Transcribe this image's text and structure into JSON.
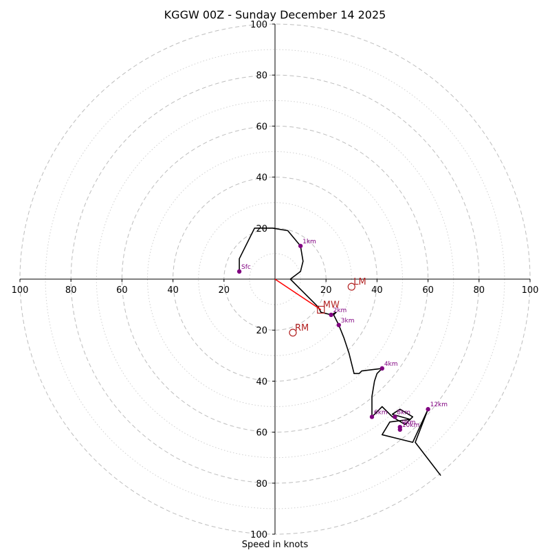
{
  "chart_data": {
    "type": "scatter",
    "title": "KGGW 00Z - Sunday December 14 2025",
    "xlabel": "Speed in knots",
    "ylabel": "",
    "xlim": [
      -100,
      100
    ],
    "ylim": [
      -100,
      100
    ],
    "ring_major": [
      20,
      40,
      60,
      80,
      100
    ],
    "ring_minor": [
      10,
      30,
      50,
      70,
      90
    ],
    "tick_labels": [
      "20",
      "40",
      "60",
      "80",
      "100"
    ],
    "hodograph_trace": [
      [
        -14,
        3
      ],
      [
        -14,
        8
      ],
      [
        -9,
        18
      ],
      [
        -8,
        20
      ],
      [
        -1,
        20
      ],
      [
        5,
        19
      ],
      [
        10,
        13
      ],
      [
        11,
        7
      ],
      [
        10,
        3
      ],
      [
        6,
        0
      ],
      [
        10,
        -4
      ],
      [
        17,
        -11
      ],
      [
        18,
        -13
      ],
      [
        22,
        -14
      ],
      [
        24,
        -13
      ],
      [
        23,
        -14
      ],
      [
        25,
        -18
      ],
      [
        27,
        -23
      ],
      [
        29,
        -29
      ],
      [
        31,
        -37
      ],
      [
        33,
        -37
      ],
      [
        34,
        -36
      ],
      [
        42,
        -35
      ],
      [
        40,
        -37
      ],
      [
        39,
        -40
      ],
      [
        38,
        -46
      ],
      [
        38,
        -54
      ],
      [
        41,
        -51
      ],
      [
        42,
        -50
      ],
      [
        46,
        -54
      ],
      [
        51,
        -57
      ],
      [
        54,
        -54
      ],
      [
        49,
        -51
      ],
      [
        46,
        -53
      ],
      [
        53,
        -55
      ],
      [
        45,
        -56
      ],
      [
        42,
        -61
      ],
      [
        54,
        -64
      ],
      [
        60,
        -51
      ],
      [
        55,
        -64
      ],
      [
        65,
        -77
      ]
    ],
    "height_markers": [
      {
        "label": "Sfc",
        "u": -14,
        "v": 3
      },
      {
        "label": "1km",
        "u": 10,
        "v": 13
      },
      {
        "label": "2km",
        "u": 22,
        "v": -14
      },
      {
        "label": "3km",
        "u": 25,
        "v": -18
      },
      {
        "label": "4km",
        "u": 42,
        "v": -35
      },
      {
        "label": "6km",
        "u": 38,
        "v": -54
      },
      {
        "label": "8km",
        "u": 47,
        "v": -54
      },
      {
        "label": "9km",
        "u": 49,
        "v": -58
      },
      {
        "label": "10km",
        "u": 49,
        "v": -59
      },
      {
        "label": "12km",
        "u": 60,
        "v": -51
      }
    ],
    "mean_wind_vector": [
      18,
      -12
    ],
    "storm_motion": [
      {
        "label": "LM",
        "u": 30,
        "v": -3,
        "marker": "circle"
      },
      {
        "label": "MW",
        "u": 18,
        "v": -12,
        "marker": "square"
      },
      {
        "label": "RM",
        "u": 7,
        "v": -21,
        "marker": "circle"
      }
    ],
    "colors": {
      "trace": "#000000",
      "height_marker": "#800080",
      "mean_wind": "#ff0000",
      "storm_motion": "#b22222",
      "rings": "#bdbdbd"
    }
  }
}
